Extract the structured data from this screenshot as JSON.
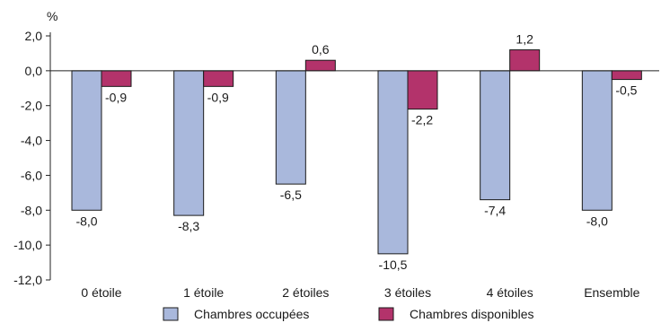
{
  "chart_data": {
    "type": "bar",
    "unit_label": "%",
    "categories": [
      "0 étoile",
      "1 étoile",
      "2 étoiles",
      "3 étoiles",
      "4 étoiles",
      "Ensemble"
    ],
    "series": [
      {
        "name": "Chambres occupées",
        "color": "#a9b8dc",
        "values": [
          -8.0,
          -8.3,
          -6.5,
          -10.5,
          -7.4,
          -8.0
        ],
        "labels": [
          "-8,0",
          "-8,3",
          "-6,5",
          "-10,5",
          "-7,4",
          "-8,0"
        ]
      },
      {
        "name": "Chambres disponibles",
        "color": "#b3336b",
        "values": [
          -0.9,
          -0.9,
          0.6,
          -2.2,
          1.2,
          -0.5
        ],
        "labels": [
          "-0,9",
          "-0,9",
          "0,6",
          "-2,2",
          "1,2",
          "-0,5"
        ]
      }
    ],
    "ylim": [
      -12,
      2
    ],
    "yticks": [
      2,
      0,
      -2,
      -4,
      -6,
      -8,
      -10,
      -12
    ],
    "ytick_labels": [
      "2,0",
      "0,0",
      "-2,0",
      "-4,0",
      "-6,0",
      "-8,0",
      "-10,0",
      "-12,0"
    ],
    "grid": false,
    "legend_position": "bottom"
  }
}
